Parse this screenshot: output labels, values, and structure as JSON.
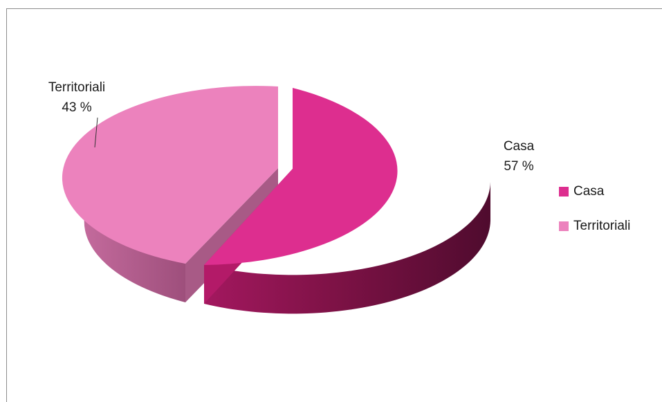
{
  "chart_data": {
    "type": "pie",
    "style": "3d-exploded",
    "categories": [
      "Casa",
      "Territoriali"
    ],
    "values": [
      57,
      43
    ],
    "labels": [
      {
        "name": "Casa",
        "value_text": "57 %"
      },
      {
        "name": "Territoriali",
        "value_text": "43 %"
      }
    ],
    "legend": {
      "position": "right",
      "items": [
        "Casa",
        "Territoriali"
      ]
    },
    "colors": {
      "Casa": "#dd2e8f",
      "Territoriali": "#ec82bd"
    }
  }
}
